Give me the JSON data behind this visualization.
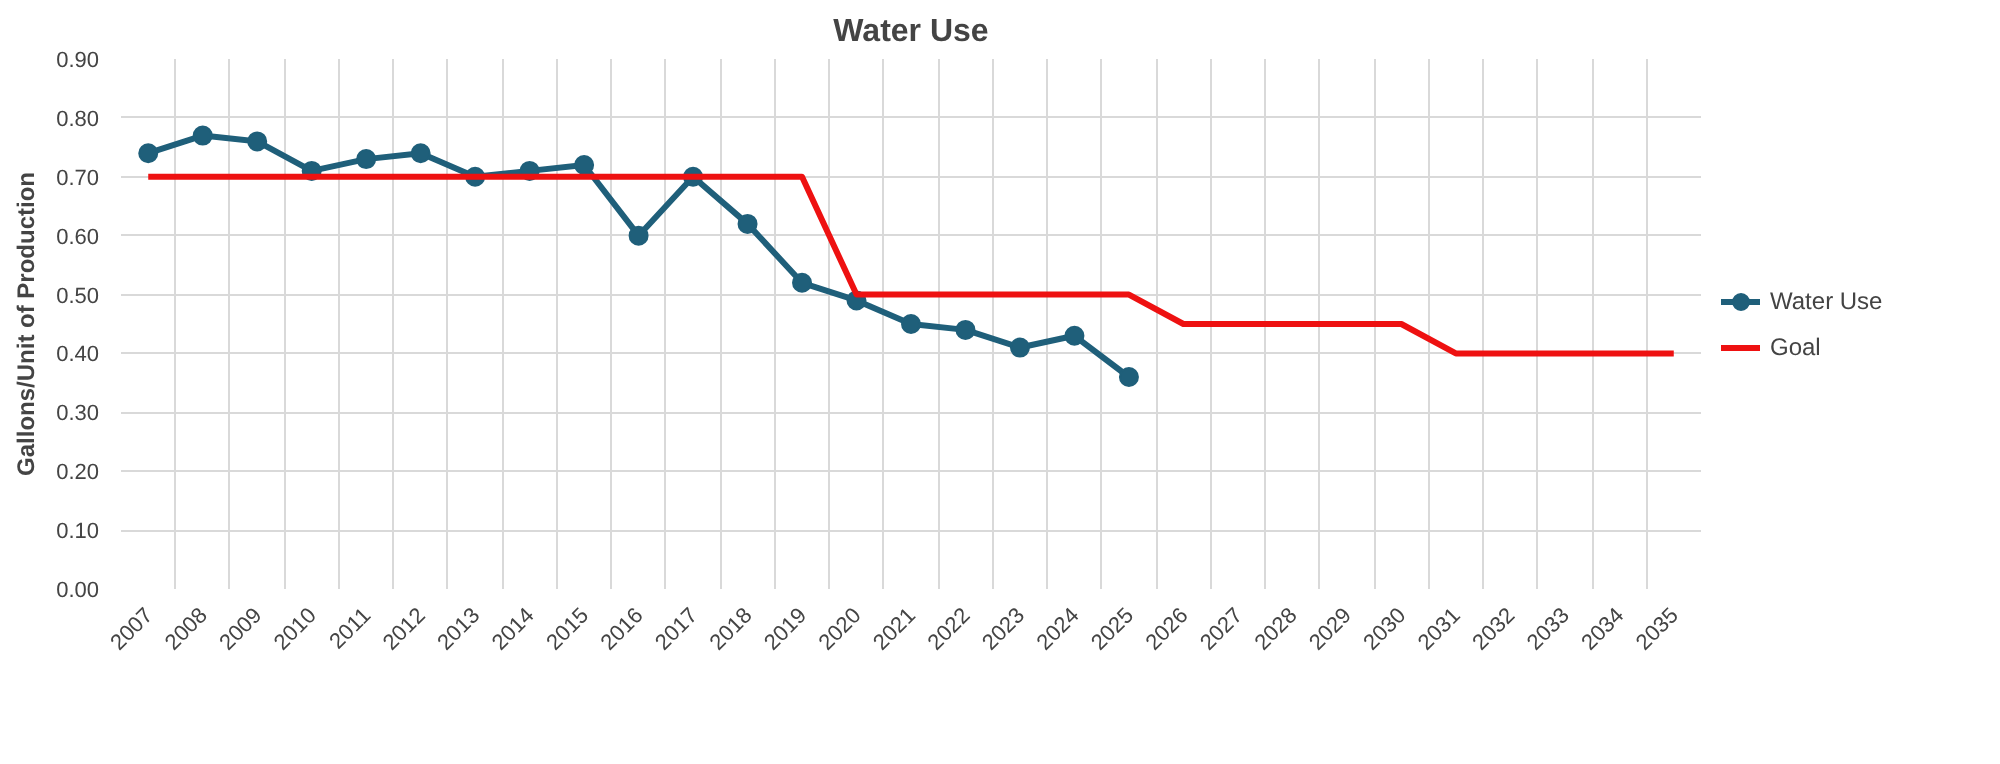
{
  "chart_data": {
    "type": "line",
    "title": "Water Use",
    "ylabel": "Gallons/Unit of Production",
    "categories": [
      "2007",
      "2008",
      "2009",
      "2010",
      "2011",
      "2012",
      "2013",
      "2014",
      "2015",
      "2016",
      "2017",
      "2018",
      "2019",
      "2020",
      "2021",
      "2022",
      "2023",
      "2024",
      "2025",
      "2026",
      "2027",
      "2028",
      "2029",
      "2030",
      "2031",
      "2032",
      "2033",
      "2034",
      "2035"
    ],
    "series": [
      {
        "name": "Water Use",
        "color": "#1f5f7a",
        "marker": "circle",
        "values": [
          0.74,
          0.77,
          0.76,
          0.71,
          0.73,
          0.74,
          0.7,
          0.71,
          0.72,
          0.6,
          0.7,
          0.62,
          0.52,
          0.49,
          0.45,
          0.44,
          0.41,
          0.43,
          0.36,
          null,
          null,
          null,
          null,
          null,
          null,
          null,
          null,
          null,
          null
        ]
      },
      {
        "name": "Goal",
        "color": "#ee1111",
        "marker": "none",
        "values": [
          0.7,
          0.7,
          0.7,
          0.7,
          0.7,
          0.7,
          0.7,
          0.7,
          0.7,
          0.7,
          0.7,
          0.7,
          0.7,
          0.5,
          0.5,
          0.5,
          0.5,
          0.5,
          0.5,
          0.45,
          0.45,
          0.45,
          0.45,
          0.45,
          0.4,
          0.4,
          0.4,
          0.4,
          0.4
        ]
      }
    ],
    "ylim": [
      0,
      0.9
    ],
    "yticks": [
      {
        "value": 0,
        "label": "0.00"
      },
      {
        "value": 0.1,
        "label": "0.10"
      },
      {
        "value": 0.2,
        "label": "0.20"
      },
      {
        "value": 0.3,
        "label": "0.30"
      },
      {
        "value": 0.4,
        "label": "0.40"
      },
      {
        "value": 0.5,
        "label": "0.50"
      },
      {
        "value": 0.6,
        "label": "0.60"
      },
      {
        "value": 0.7,
        "label": "0.70"
      },
      {
        "value": 0.8,
        "label": "0.80"
      },
      {
        "value": 0.9,
        "label": "0.90"
      }
    ],
    "grid": true,
    "legend": "right",
    "line_style": "solid"
  }
}
